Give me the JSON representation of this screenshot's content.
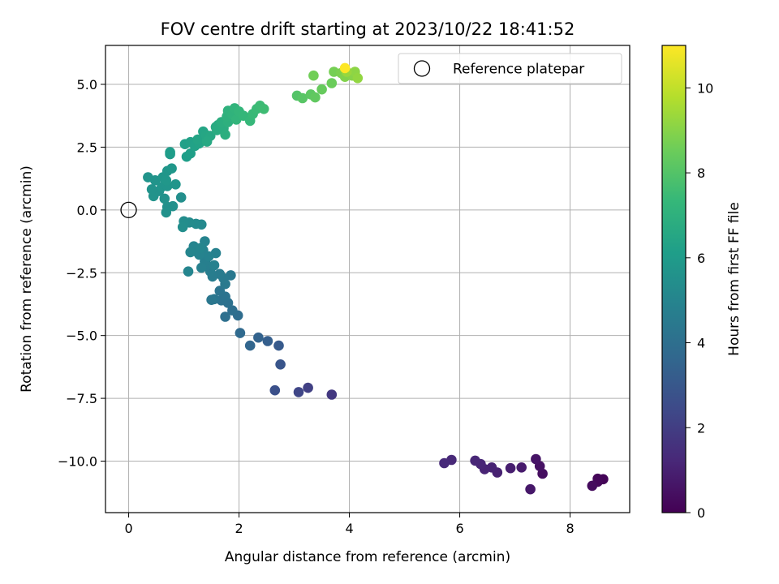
{
  "chart_data": {
    "type": "scatter",
    "title": "FOV centre drift starting at 2023/10/22 18:41:52",
    "xlabel": "Angular distance from reference (arcmin)",
    "ylabel": "Rotation from reference (arcmin)",
    "xlim": [
      -0.42,
      9.08
    ],
    "ylim": [
      -12.05,
      6.55
    ],
    "x_ticks": [
      0,
      2,
      4,
      6,
      8
    ],
    "x_tick_labels": [
      "0",
      "2",
      "4",
      "6",
      "8"
    ],
    "y_ticks": [
      5.0,
      2.5,
      0.0,
      -2.5,
      -5.0,
      -7.5,
      -10.0
    ],
    "y_tick_labels": [
      "5.0",
      "2.5",
      "0.0",
      "−2.5",
      "−5.0",
      "−7.5",
      "−10.0"
    ],
    "grid": true,
    "legend": {
      "placement": "top-right",
      "entries": [
        "Reference platepar"
      ]
    },
    "reference_point": {
      "name": "Reference platepar",
      "x": 0.0,
      "y": 0.0
    },
    "colorbar": {
      "label": "Hours from first FF file",
      "colormap": "viridis",
      "range": [
        0,
        11
      ],
      "ticks": [
        0,
        2,
        4,
        6,
        8,
        10
      ],
      "tick_labels": [
        "0",
        "2",
        "4",
        "6",
        "8",
        "10"
      ]
    },
    "series": [
      {
        "colormap_value": "hours",
        "points": [
          [
            8.6,
            -10.72,
            0.1
          ],
          [
            8.5,
            -10.7,
            0.15
          ],
          [
            8.5,
            -10.82,
            0.2
          ],
          [
            8.4,
            -10.98,
            0.3
          ],
          [
            7.5,
            -10.5,
            0.4
          ],
          [
            7.45,
            -10.2,
            0.5
          ],
          [
            7.38,
            -9.92,
            0.6
          ],
          [
            7.28,
            -11.12,
            0.7
          ],
          [
            7.12,
            -10.25,
            0.8
          ],
          [
            6.92,
            -10.28,
            0.9
          ],
          [
            6.68,
            -10.45,
            1.0
          ],
          [
            6.58,
            -10.25,
            1.05
          ],
          [
            6.45,
            -10.32,
            1.1
          ],
          [
            6.38,
            -10.12,
            1.15
          ],
          [
            6.28,
            -9.98,
            1.2
          ],
          [
            5.85,
            -9.95,
            1.25
          ],
          [
            5.72,
            -10.08,
            1.3
          ],
          [
            3.68,
            -7.35,
            1.8
          ],
          [
            3.25,
            -7.08,
            2.1
          ],
          [
            3.08,
            -7.25,
            2.3
          ],
          [
            2.65,
            -7.18,
            2.7
          ],
          [
            2.75,
            -6.15,
            2.9
          ],
          [
            2.72,
            -5.4,
            3.1
          ],
          [
            2.52,
            -5.22,
            3.3
          ],
          [
            2.35,
            -5.08,
            3.45
          ],
          [
            2.2,
            -5.4,
            3.6
          ],
          [
            2.02,
            -4.9,
            3.75
          ],
          [
            1.98,
            -4.2,
            3.9
          ],
          [
            1.88,
            -4.0,
            4.0
          ],
          [
            1.75,
            -4.25,
            4.05
          ],
          [
            1.8,
            -3.7,
            4.1
          ],
          [
            1.68,
            -3.6,
            4.15
          ],
          [
            1.75,
            -3.45,
            4.2
          ],
          [
            1.65,
            -3.22,
            4.25
          ],
          [
            1.55,
            -3.55,
            4.3
          ],
          [
            1.5,
            -3.58,
            4.35
          ],
          [
            1.85,
            -2.6,
            4.4
          ],
          [
            1.75,
            -2.95,
            4.45
          ],
          [
            1.72,
            -2.72,
            4.5
          ],
          [
            1.65,
            -2.55,
            4.55
          ],
          [
            1.52,
            -2.65,
            4.6
          ],
          [
            1.48,
            -2.45,
            4.65
          ],
          [
            1.42,
            -2.2,
            4.7
          ],
          [
            1.38,
            -2.05,
            4.75
          ],
          [
            1.32,
            -2.3,
            4.8
          ],
          [
            1.58,
            -1.72,
            4.82
          ],
          [
            1.55,
            -2.2,
            4.85
          ],
          [
            1.45,
            -1.85,
            4.88
          ],
          [
            1.35,
            -1.6,
            4.9
          ],
          [
            1.38,
            -1.25,
            4.92
          ],
          [
            1.28,
            -1.78,
            4.94
          ],
          [
            1.22,
            -1.65,
            4.96
          ],
          [
            1.18,
            -1.45,
            4.98
          ],
          [
            1.08,
            -2.45,
            5.0
          ],
          [
            1.12,
            -1.68,
            5.02
          ],
          [
            1.3,
            -1.52,
            5.04
          ],
          [
            1.32,
            -0.58,
            5.2
          ],
          [
            1.22,
            -0.55,
            5.25
          ],
          [
            1.1,
            -0.5,
            5.3
          ],
          [
            1.0,
            -0.45,
            5.35
          ],
          [
            0.98,
            -0.68,
            5.4
          ],
          [
            0.95,
            0.5,
            5.45
          ],
          [
            0.8,
            0.15,
            5.5
          ],
          [
            0.7,
            0.12,
            5.52
          ],
          [
            0.68,
            -0.1,
            5.55
          ],
          [
            0.65,
            0.45,
            5.58
          ],
          [
            0.55,
            0.75,
            5.6
          ],
          [
            0.45,
            0.55,
            5.62
          ],
          [
            0.42,
            0.82,
            5.64
          ],
          [
            0.35,
            1.3,
            5.66
          ],
          [
            0.48,
            1.18,
            5.68
          ],
          [
            0.6,
            0.92,
            5.7
          ],
          [
            0.7,
            0.95,
            5.72
          ],
          [
            0.85,
            1.02,
            5.74
          ],
          [
            0.62,
            1.3,
            5.76
          ],
          [
            0.7,
            1.55,
            5.78
          ],
          [
            0.78,
            1.65,
            5.8
          ],
          [
            0.68,
            1.18,
            5.82
          ],
          [
            0.75,
            2.22,
            6.0
          ],
          [
            0.75,
            2.3,
            6.05
          ],
          [
            1.05,
            2.12,
            6.1
          ],
          [
            1.12,
            2.25,
            6.15
          ],
          [
            1.02,
            2.62,
            6.2
          ],
          [
            1.12,
            2.7,
            6.25
          ],
          [
            1.2,
            2.55,
            6.3
          ],
          [
            1.28,
            2.65,
            6.35
          ],
          [
            1.25,
            2.8,
            6.4
          ],
          [
            1.35,
            3.12,
            6.45
          ],
          [
            1.4,
            2.98,
            6.5
          ],
          [
            1.48,
            2.95,
            6.55
          ],
          [
            1.42,
            2.72,
            6.6
          ],
          [
            1.58,
            3.3,
            6.65
          ],
          [
            1.62,
            3.38,
            6.7
          ],
          [
            1.6,
            3.18,
            6.75
          ],
          [
            1.72,
            3.25,
            6.8
          ],
          [
            1.68,
            3.5,
            6.85
          ],
          [
            1.75,
            3.0,
            6.9
          ],
          [
            1.8,
            3.5,
            6.95
          ],
          [
            1.78,
            3.72,
            7.0
          ],
          [
            1.8,
            3.95,
            7.05
          ],
          [
            1.88,
            3.8,
            7.1
          ],
          [
            1.92,
            4.05,
            7.15
          ],
          [
            1.95,
            3.6,
            7.2
          ],
          [
            2.0,
            3.92,
            7.25
          ],
          [
            2.08,
            3.75,
            7.3
          ],
          [
            2.2,
            3.55,
            7.35
          ],
          [
            2.25,
            3.82,
            7.4
          ],
          [
            2.32,
            4.02,
            7.45
          ],
          [
            2.38,
            4.15,
            7.5
          ],
          [
            2.45,
            4.02,
            7.55
          ],
          [
            3.05,
            4.55,
            8.0
          ],
          [
            3.15,
            4.45,
            8.1
          ],
          [
            3.3,
            4.6,
            8.2
          ],
          [
            3.38,
            4.48,
            8.3
          ],
          [
            3.5,
            4.8,
            8.4
          ],
          [
            3.68,
            5.05,
            8.5
          ],
          [
            3.35,
            5.35,
            8.6
          ],
          [
            3.72,
            5.5,
            8.7
          ],
          [
            3.85,
            5.45,
            8.8
          ],
          [
            3.92,
            5.3,
            8.9
          ],
          [
            4.05,
            5.35,
            9.0
          ],
          [
            4.1,
            5.5,
            9.1
          ],
          [
            4.15,
            5.25,
            9.2
          ],
          [
            3.95,
            5.5,
            9.3
          ],
          [
            3.92,
            5.65,
            11.0
          ]
        ]
      }
    ]
  }
}
